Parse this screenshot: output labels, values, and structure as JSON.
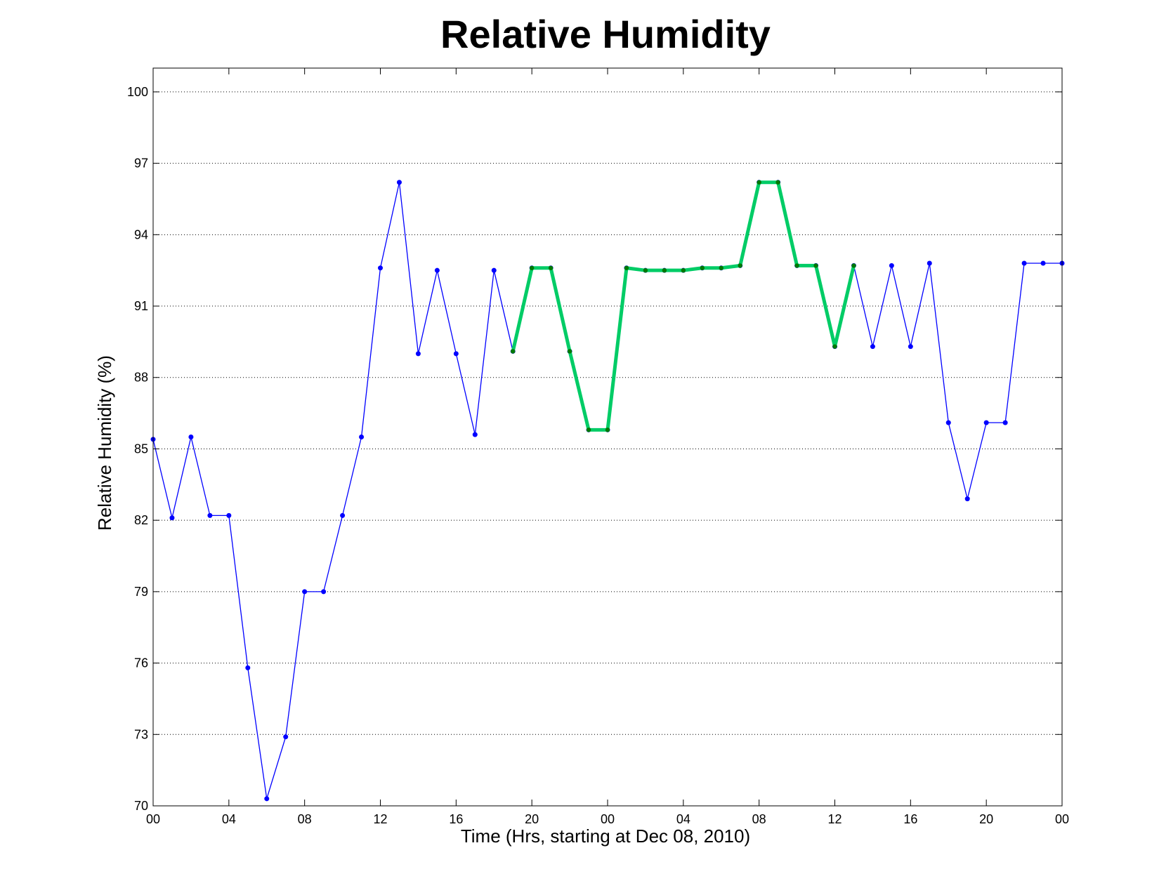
{
  "chart_data": {
    "type": "line",
    "title": "Relative Humidity",
    "xlabel": "Time (Hrs, starting at Dec 08, 2010)",
    "ylabel": "Relative Humidity (%)",
    "xlim": [
      0,
      48
    ],
    "ylim": [
      70,
      101
    ],
    "x_ticks": [
      0,
      4,
      8,
      12,
      16,
      20,
      24,
      28,
      32,
      36,
      40,
      44,
      48
    ],
    "x_tick_labels": [
      "00",
      "04",
      "08",
      "12",
      "16",
      "20",
      "00",
      "04",
      "08",
      "12",
      "16",
      "20",
      "00"
    ],
    "y_ticks": [
      70,
      73,
      76,
      79,
      82,
      85,
      88,
      91,
      94,
      97,
      100
    ],
    "y_tick_labels": [
      "70",
      "73",
      "76",
      "79",
      "82",
      "85",
      "88",
      "91",
      "94",
      "97",
      "100"
    ],
    "grid": "y-dotted",
    "series": [
      {
        "color": "#0000ff",
        "marker_color": "#0000ff",
        "x": [
          0,
          1,
          2,
          3,
          4,
          5,
          6,
          7,
          8,
          9,
          10,
          11,
          12,
          13,
          14,
          15,
          16,
          17,
          18,
          19,
          20,
          21,
          22,
          23,
          24,
          25,
          26,
          27,
          28,
          29,
          30,
          31,
          32,
          33,
          34,
          35,
          36,
          37,
          38,
          39,
          40,
          41,
          42,
          43,
          44,
          45,
          46,
          47,
          48
        ],
        "values": [
          85.4,
          82.1,
          85.5,
          82.2,
          82.2,
          75.8,
          70.3,
          72.9,
          79.0,
          79.0,
          82.2,
          85.5,
          92.6,
          96.2,
          89.0,
          92.5,
          89.0,
          85.6,
          92.5,
          89.1,
          92.6,
          92.6,
          89.1,
          85.8,
          85.8,
          92.6,
          92.5,
          92.5,
          92.5,
          92.6,
          92.6,
          92.7,
          96.2,
          96.2,
          92.7,
          92.7,
          89.3,
          92.7,
          89.3,
          92.7,
          89.3,
          92.8,
          86.1,
          82.9,
          86.1,
          86.1,
          92.8,
          92.8,
          92.8
        ]
      },
      {
        "color": "#00cc66",
        "marker_color": "#007a00",
        "x": [
          19,
          20,
          21,
          22,
          23,
          24,
          25,
          26,
          27,
          28,
          29,
          30,
          31,
          32,
          33,
          34,
          35,
          36,
          37
        ],
        "values": [
          89.1,
          92.6,
          92.6,
          89.1,
          85.8,
          85.8,
          92.6,
          92.5,
          92.5,
          92.5,
          92.6,
          92.6,
          92.7,
          96.2,
          96.2,
          92.7,
          92.7,
          89.3,
          92.7
        ]
      }
    ]
  }
}
